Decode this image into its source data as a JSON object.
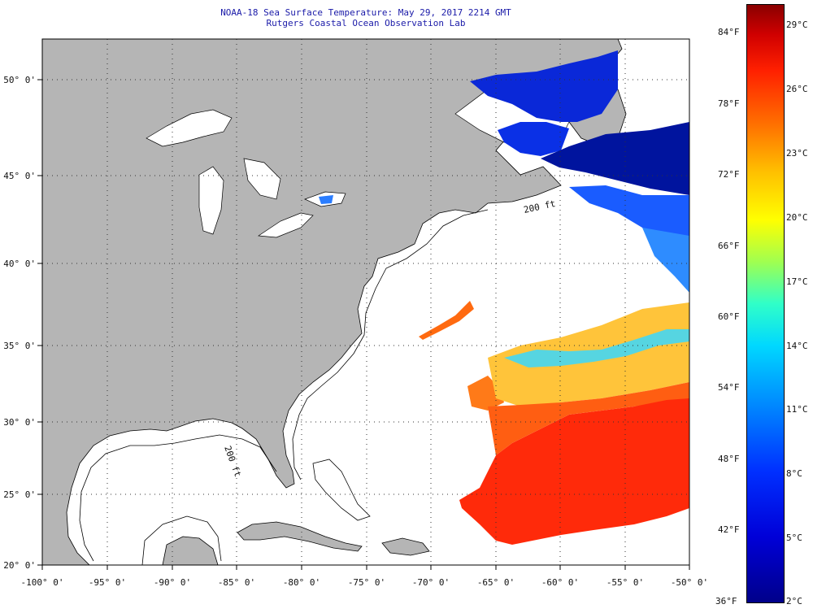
{
  "header": {
    "title": "NOAA-18 Sea Surface Temperature:  May 29, 2017 2214 GMT",
    "subtitle": "Rutgers Coastal Ocean Observation Lab"
  },
  "map": {
    "lon_labels": [
      "-100° 0'",
      "-95° 0'",
      "-90° 0'",
      "-85° 0'",
      "-80° 0'",
      "-75° 0'",
      "-70° 0'",
      "-65° 0'",
      "-60° 0'",
      "-55° 0'",
      "-50° 0'"
    ],
    "lat_labels": [
      "20° 0'",
      "25° 0'",
      "30° 0'",
      "35° 0'",
      "40° 0'",
      "45° 0'",
      "50° 0'"
    ],
    "land_color": "#b5b5b5",
    "water_color": "#ffffff",
    "contour_labels": [
      "200 ft",
      "200 ft"
    ]
  },
  "colorbar": {
    "fahrenheit_labels": [
      "84°F",
      "78°F",
      "72°F",
      "66°F",
      "60°F",
      "54°F",
      "48°F",
      "42°F",
      "36°F"
    ],
    "celsius_labels": [
      "29°C",
      "26°C",
      "23°C",
      "20°C",
      "17°C",
      "14°C",
      "11°C",
      "8°C",
      "5°C",
      "2°C"
    ]
  }
}
